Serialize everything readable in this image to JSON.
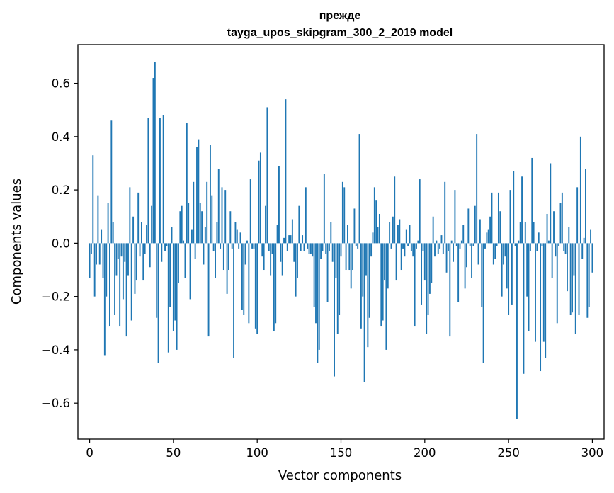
{
  "chart_data": {
    "type": "bar",
    "title_line1": "прежде",
    "title_line2": "tayga_upos_skipgram_300_2_2019 model",
    "xlabel": "Vector components",
    "ylabel": "Components values",
    "xlim": [
      -7,
      307
    ],
    "ylim": [
      -0.735,
      0.745
    ],
    "x_ticks": [
      0,
      50,
      100,
      150,
      200,
      250,
      300
    ],
    "y_ticks": [
      0.6,
      0.4,
      0.2,
      0.0,
      -0.2,
      -0.4,
      -0.6
    ],
    "y_tick_labels": [
      "0.6",
      "0.4",
      "0.2",
      "0.0",
      "−0.2",
      "−0.4",
      "−0.6"
    ],
    "color": "#1f77b4",
    "grid": false,
    "legend": "none",
    "values": [
      -0.13,
      -0.04,
      0.33,
      -0.2,
      -0.08,
      0.18,
      -0.08,
      0.05,
      -0.13,
      -0.42,
      -0.2,
      0.15,
      -0.31,
      0.46,
      0.08,
      -0.27,
      -0.12,
      -0.06,
      -0.31,
      -0.05,
      -0.21,
      -0.07,
      -0.35,
      -0.12,
      0.21,
      -0.29,
      0.1,
      -0.19,
      -0.14,
      0.19,
      -0.05,
      0.08,
      -0.14,
      -0.04,
      0.07,
      0.47,
      -0.09,
      0.14,
      0.62,
      0.68,
      -0.28,
      -0.45,
      0.47,
      -0.07,
      0.48,
      -0.03,
      -0.01,
      -0.41,
      -0.24,
      0.06,
      -0.33,
      -0.29,
      -0.4,
      -0.15,
      0.12,
      0.14,
      0.01,
      -0.13,
      0.45,
      0.15,
      -0.21,
      0.05,
      0.23,
      -0.06,
      0.36,
      0.39,
      0.15,
      0.12,
      -0.08,
      0.06,
      0.23,
      -0.35,
      0.37,
      0.18,
      -0.03,
      -0.13,
      0.08,
      0.28,
      -0.02,
      0.21,
      -0.1,
      0.2,
      -0.19,
      -0.1,
      0.12,
      -0.02,
      -0.43,
      0.08,
      0.05,
      -0.02,
      0.04,
      -0.25,
      -0.27,
      -0.08,
      0.01,
      -0.3,
      0.24,
      -0.02,
      -0.02,
      -0.32,
      -0.34,
      0.31,
      0.34,
      -0.05,
      -0.1,
      0.14,
      0.51,
      -0.03,
      -0.12,
      -0.04,
      -0.33,
      -0.3,
      0.07,
      0.29,
      -0.07,
      -0.12,
      0.02,
      0.54,
      -0.03,
      0.03,
      0.03,
      0.09,
      -0.07,
      -0.2,
      -0.13,
      0.14,
      -0.03,
      0.03,
      -0.03,
      0.21,
      -0.02,
      -0.04,
      -0.04,
      -0.05,
      -0.24,
      -0.3,
      -0.45,
      -0.4,
      -0.06,
      -0.03,
      0.26,
      -0.04,
      -0.22,
      -0.03,
      0.08,
      -0.07,
      -0.5,
      -0.13,
      -0.34,
      -0.27,
      -0.05,
      0.23,
      0.21,
      -0.1,
      0.07,
      -0.1,
      -0.17,
      -0.1,
      0.13,
      -0.01,
      -0.02,
      0.41,
      -0.32,
      -0.2,
      -0.52,
      -0.12,
      -0.39,
      -0.28,
      -0.05,
      0.04,
      0.21,
      0.16,
      0.06,
      0.11,
      -0.31,
      -0.29,
      -0.14,
      -0.4,
      -0.17,
      0.08,
      -0.02,
      0.1,
      0.25,
      -0.14,
      0.07,
      0.09,
      -0.1,
      -0.02,
      -0.05,
      0.05,
      -0.01,
      0.07,
      -0.03,
      -0.05,
      -0.31,
      -0.02,
      0.01,
      0.24,
      -0.23,
      -0.03,
      -0.14,
      -0.34,
      -0.27,
      -0.19,
      -0.15,
      0.1,
      -0.05,
      0.01,
      -0.04,
      -0.02,
      0.03,
      -0.04,
      0.23,
      -0.11,
      -0.03,
      -0.35,
      0.01,
      -0.07,
      0.2,
      -0.01,
      -0.22,
      -0.02,
      0.01,
      0.07,
      -0.17,
      -0.09,
      0.13,
      -0.01,
      -0.13,
      -0.01,
      0.14,
      0.41,
      -0.08,
      0.09,
      -0.24,
      -0.45,
      -0.02,
      0.04,
      0.05,
      0.1,
      0.19,
      -0.08,
      -0.06,
      -0.01,
      0.19,
      0.12,
      -0.2,
      -0.08,
      -0.05,
      -0.17,
      -0.27,
      0.2,
      -0.23,
      0.27,
      -0.01,
      -0.66,
      0.01,
      0.08,
      0.25,
      -0.49,
      0.08,
      -0.2,
      -0.33,
      -0.03,
      0.32,
      0.08,
      -0.37,
      -0.03,
      0.04,
      -0.48,
      -0.01,
      -0.37,
      -0.43,
      0.11,
      0.01,
      0.3,
      -0.13,
      0.12,
      -0.05,
      -0.3,
      -0.01,
      0.15,
      0.19,
      -0.03,
      -0.04,
      -0.18,
      0.06,
      -0.27,
      -0.26,
      -0.12,
      -0.34,
      0.21,
      -0.27,
      0.4,
      -0.06,
      0.02,
      0.28,
      -0.28,
      -0.24,
      0.05,
      -0.11
    ]
  }
}
